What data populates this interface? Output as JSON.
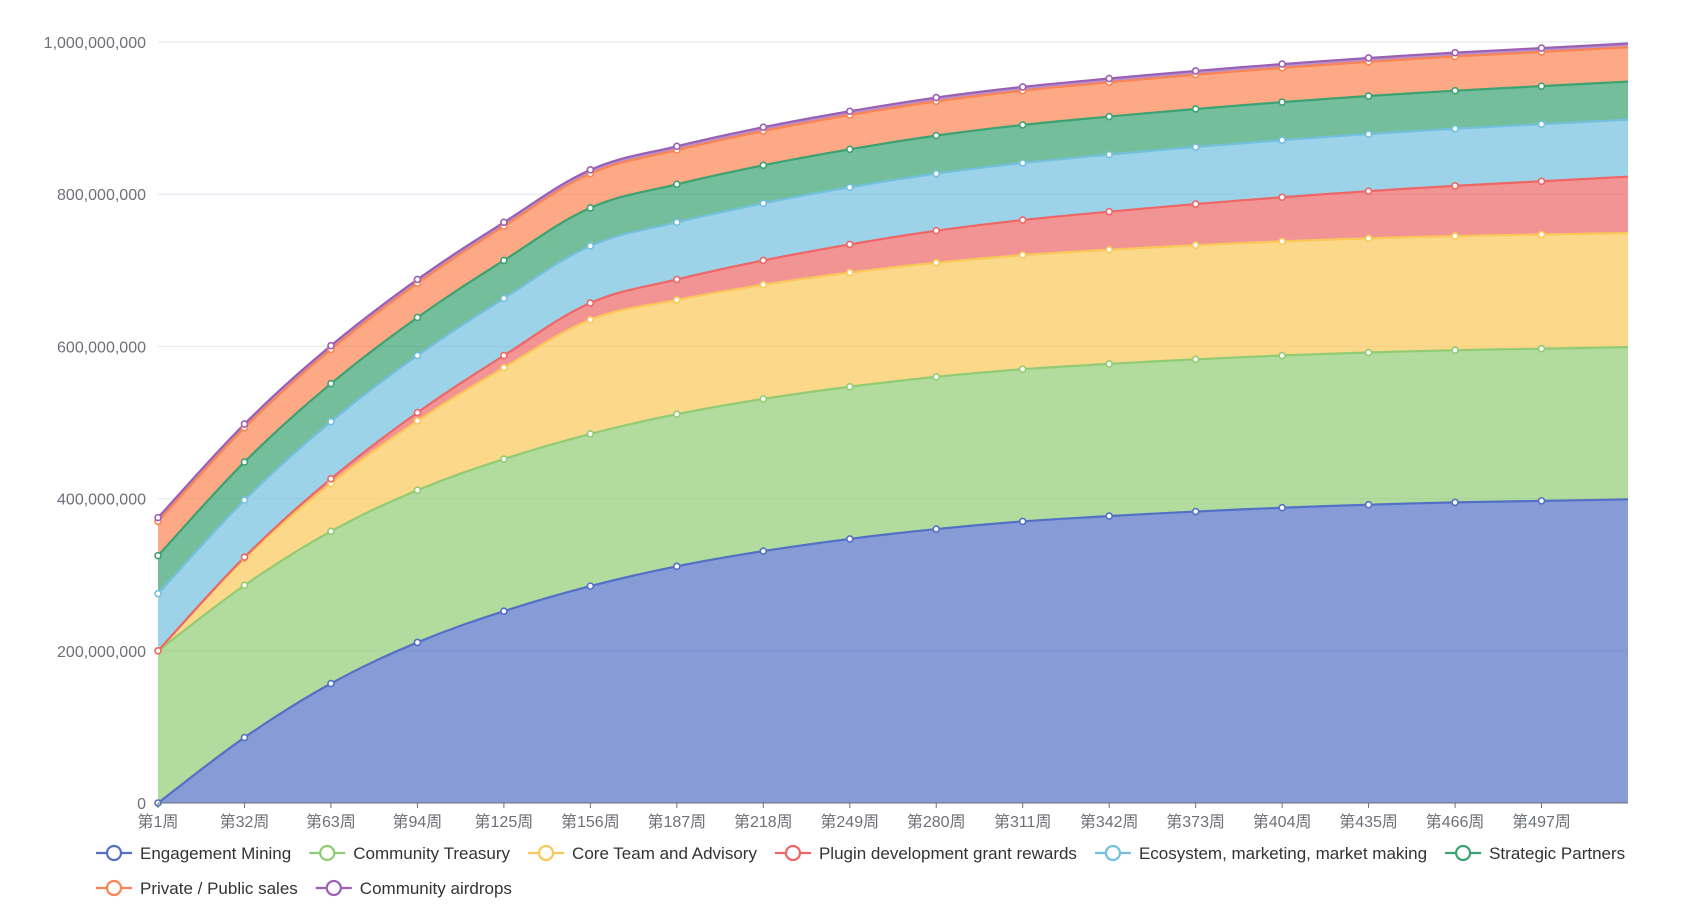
{
  "chart_data": {
    "type": "area",
    "stacked": true,
    "title": "",
    "xlabel": "",
    "ylabel": "",
    "ylim": [
      0,
      1000000000
    ],
    "y_ticks": [
      0,
      200000000,
      400000000,
      600000000,
      800000000,
      1000000000
    ],
    "y_tick_labels": [
      "0",
      "200,000,000",
      "400,000,000",
      "600,000,000",
      "800,000,000",
      "1,000,000,000"
    ],
    "grid": true,
    "legend_position": "bottom",
    "categories": [
      "第1周",
      "第32周",
      "第63周",
      "第94周",
      "第125周",
      "第156周",
      "第187周",
      "第218周",
      "第249周",
      "第280周",
      "第311周",
      "第342周",
      "第373周",
      "第404周",
      "第435周",
      "第466周",
      "第497周",
      ""
    ],
    "series": [
      {
        "name": "Engagement Mining",
        "color": "#5470c6",
        "values": [
          0,
          86000000,
          157000000,
          211000000,
          252000000,
          285000000,
          311000000,
          331000000,
          347000000,
          360000000,
          370000000,
          377000000,
          383000000,
          388000000,
          392000000,
          395000000,
          397000000,
          399000000
        ]
      },
      {
        "name": "Community Treasury",
        "color": "#91cc75",
        "values": [
          200000000,
          200000000,
          200000000,
          200000000,
          200000000,
          200000000,
          200000000,
          200000000,
          200000000,
          200000000,
          200000000,
          200000000,
          200000000,
          200000000,
          200000000,
          200000000,
          200000000,
          200000000
        ]
      },
      {
        "name": "Core Team and Advisory",
        "color": "#fac858",
        "values": [
          0,
          35000000,
          63000000,
          91000000,
          120000000,
          150000000,
          150000000,
          150000000,
          150000000,
          150000000,
          150000000,
          150000000,
          150000000,
          150000000,
          150000000,
          150000000,
          150000000,
          150000000
        ]
      },
      {
        "name": "Plugin development grant rewards",
        "color": "#ee6666",
        "values": [
          0,
          2000000,
          6000000,
          11000000,
          16000000,
          22000000,
          27000000,
          32000000,
          37000000,
          42000000,
          46000000,
          50000000,
          54000000,
          58000000,
          62000000,
          66000000,
          70000000,
          74000000
        ]
      },
      {
        "name": "Ecosystem, marketing, market making",
        "color": "#73c0de",
        "values": [
          75000000,
          75000000,
          75000000,
          75000000,
          75000000,
          75000000,
          75000000,
          75000000,
          75000000,
          75000000,
          75000000,
          75000000,
          75000000,
          75000000,
          75000000,
          75000000,
          75000000,
          75000000
        ]
      },
      {
        "name": "Strategic Partners",
        "color": "#3ba272",
        "values": [
          50000000,
          50000000,
          50000000,
          50000000,
          50000000,
          50000000,
          50000000,
          50000000,
          50000000,
          50000000,
          50000000,
          50000000,
          50000000,
          50000000,
          50000000,
          50000000,
          50000000,
          50000000
        ]
      },
      {
        "name": "Private / Public sales",
        "color": "#fc8452",
        "values": [
          45000000,
          45000000,
          45000000,
          45000000,
          45000000,
          45000000,
          45000000,
          45000000,
          45000000,
          45000000,
          45000000,
          45000000,
          45000000,
          45000000,
          45000000,
          45000000,
          45000000,
          45000000
        ]
      },
      {
        "name": "Community airdrops",
        "color": "#9a60b4",
        "values": [
          5000000,
          5000000,
          5000000,
          5000000,
          5000000,
          5000000,
          5000000,
          5000000,
          5000000,
          5000000,
          5000000,
          5000000,
          5000000,
          5000000,
          5000000,
          5000000,
          5000000,
          5000000
        ]
      }
    ]
  }
}
